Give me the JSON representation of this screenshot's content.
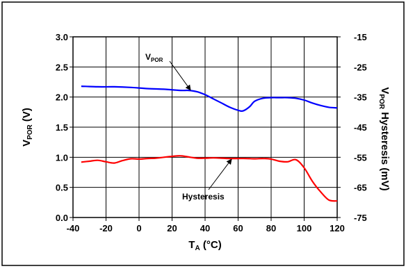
{
  "chart_data": {
    "type": "line",
    "xlabel": {
      "main": "T",
      "sub": "A",
      "rest": " (°C)"
    },
    "ylabel": {
      "main": "V",
      "sub": "POR",
      "rest": " (V)"
    },
    "y2label": {
      "main": "V",
      "sub": "POR",
      "rest": " Hysteresis (mV)"
    },
    "xlim": [
      -40,
      120
    ],
    "ylim": [
      0,
      3
    ],
    "y2lim": [
      -75,
      -15
    ],
    "x_ticks": [
      -40,
      -20,
      0,
      20,
      40,
      60,
      80,
      100,
      120
    ],
    "x_tick_labels": [
      "-40",
      "-20",
      "0",
      "20",
      "40",
      "60",
      "80",
      "100",
      "120"
    ],
    "y_ticks": [
      0,
      0.5,
      1.0,
      1.5,
      2.0,
      2.5,
      3.0
    ],
    "y_tick_labels": [
      "0.0",
      "0.5",
      "1.0",
      "1.5",
      "2.0",
      "2.5",
      "3.0"
    ],
    "y2_ticks": [
      -75,
      -65,
      -55,
      -45,
      -35,
      -25,
      -15
    ],
    "y2_tick_labels": [
      "-75",
      "-65",
      "-55",
      "-45",
      "-35",
      "-25",
      "-15"
    ],
    "grid": true,
    "series": [
      {
        "key": "vpor",
        "axis": "left",
        "color": "#0000ff",
        "x": [
          -35,
          -25,
          -15,
          -5,
          5,
          15,
          25,
          30,
          35,
          40,
          45,
          50,
          55,
          60,
          63,
          67,
          70,
          75,
          80,
          85,
          90,
          95,
          100,
          105,
          110,
          115,
          120
        ],
        "y": [
          2.18,
          2.17,
          2.17,
          2.16,
          2.14,
          2.13,
          2.11,
          2.11,
          2.09,
          2.04,
          1.97,
          1.9,
          1.83,
          1.78,
          1.77,
          1.84,
          1.93,
          1.98,
          1.99,
          1.99,
          1.99,
          1.98,
          1.95,
          1.9,
          1.86,
          1.83,
          1.82
        ]
      },
      {
        "key": "hysteresis",
        "axis": "right",
        "color": "#ff0000",
        "x": [
          -35,
          -30,
          -25,
          -20,
          -15,
          -10,
          -5,
          0,
          5,
          10,
          15,
          20,
          25,
          30,
          35,
          40,
          45,
          50,
          55,
          60,
          65,
          70,
          75,
          80,
          85,
          90,
          95,
          100,
          105,
          110,
          115,
          120
        ],
        "y": [
          -56.6,
          -56.3,
          -56.0,
          -56.5,
          -56.9,
          -56.1,
          -55.5,
          -55.6,
          -55.4,
          -55.3,
          -55.0,
          -54.7,
          -54.5,
          -54.9,
          -55.3,
          -55.3,
          -55.2,
          -55.3,
          -55.4,
          -55.4,
          -55.4,
          -55.5,
          -55.4,
          -55.6,
          -56.3,
          -56.5,
          -55.8,
          -58.5,
          -63.0,
          -66.5,
          -69.2,
          -69.5
        ]
      }
    ],
    "annotations": [
      {
        "key": "vpor",
        "main": "V",
        "sub": "POR",
        "target_x": 32,
        "target_y": 2.07
      },
      {
        "key": "hyst",
        "text": "Hysteresis",
        "target_x": 56,
        "target_y": 0.99
      }
    ]
  }
}
